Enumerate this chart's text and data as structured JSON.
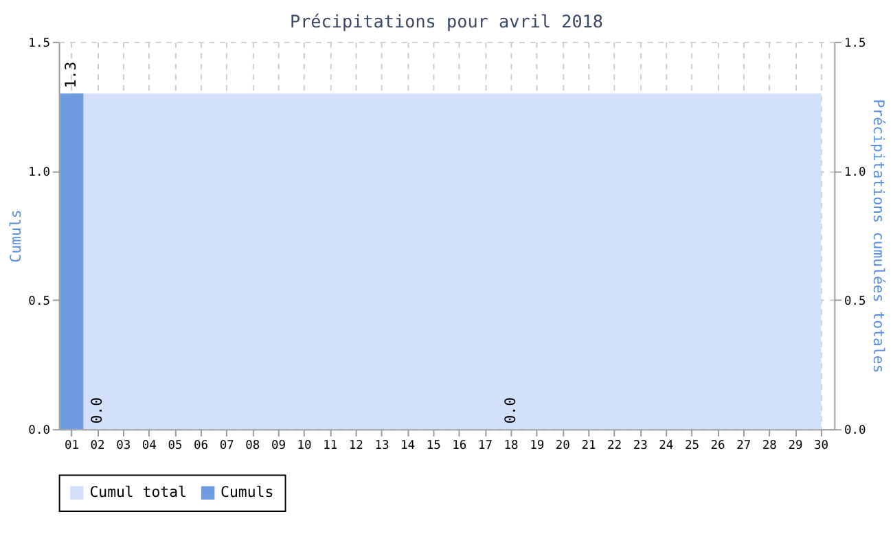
{
  "chart_data": {
    "type": "bar",
    "title": "Précipitations pour avril 2018",
    "ylabel": "Cumuls",
    "y2label": "Précipitations cumulées totales",
    "categories": [
      "01",
      "02",
      "03",
      "04",
      "05",
      "06",
      "07",
      "08",
      "09",
      "10",
      "11",
      "12",
      "13",
      "14",
      "15",
      "16",
      "17",
      "18",
      "19",
      "20",
      "21",
      "22",
      "23",
      "24",
      "25",
      "26",
      "27",
      "28",
      "29",
      "30"
    ],
    "series": [
      {
        "name": "Cumul total",
        "type": "area",
        "axis": "y2",
        "color": "#d3e0f9",
        "values": [
          1.3,
          1.3,
          1.3,
          1.3,
          1.3,
          1.3,
          1.3,
          1.3,
          1.3,
          1.3,
          1.3,
          1.3,
          1.3,
          1.3,
          1.3,
          1.3,
          1.3,
          1.3,
          1.3,
          1.3,
          1.3,
          1.3,
          1.3,
          1.3,
          1.3,
          1.3,
          1.3,
          1.3,
          1.3,
          1.3
        ]
      },
      {
        "name": "Cumuls",
        "color": "#6f9be0",
        "values": [
          1.3,
          0.0,
          null,
          null,
          null,
          null,
          null,
          null,
          null,
          null,
          null,
          null,
          null,
          null,
          null,
          null,
          null,
          0.0,
          null,
          null,
          null,
          null,
          null,
          null,
          null,
          null,
          null,
          null,
          null,
          null
        ],
        "value_labels": [
          "1.3",
          "0.0",
          null,
          null,
          null,
          null,
          null,
          null,
          null,
          null,
          null,
          null,
          null,
          null,
          null,
          null,
          null,
          "0.0",
          null,
          null,
          null,
          null,
          null,
          null,
          null,
          null,
          null,
          null,
          null,
          null
        ]
      }
    ],
    "ylim": [
      0,
      1.5
    ],
    "yticks": [
      {
        "value": 0,
        "label": "0.0"
      },
      0.5,
      {
        "value": 1,
        "label": "1.0"
      },
      1.5
    ],
    "y2lim": [
      0,
      1.5
    ],
    "y2ticks": [
      {
        "value": 0,
        "label": "0.0"
      },
      0.5,
      {
        "value": 1,
        "label": "1.0"
      },
      1.5
    ],
    "grid": true,
    "legend": "bottom"
  }
}
